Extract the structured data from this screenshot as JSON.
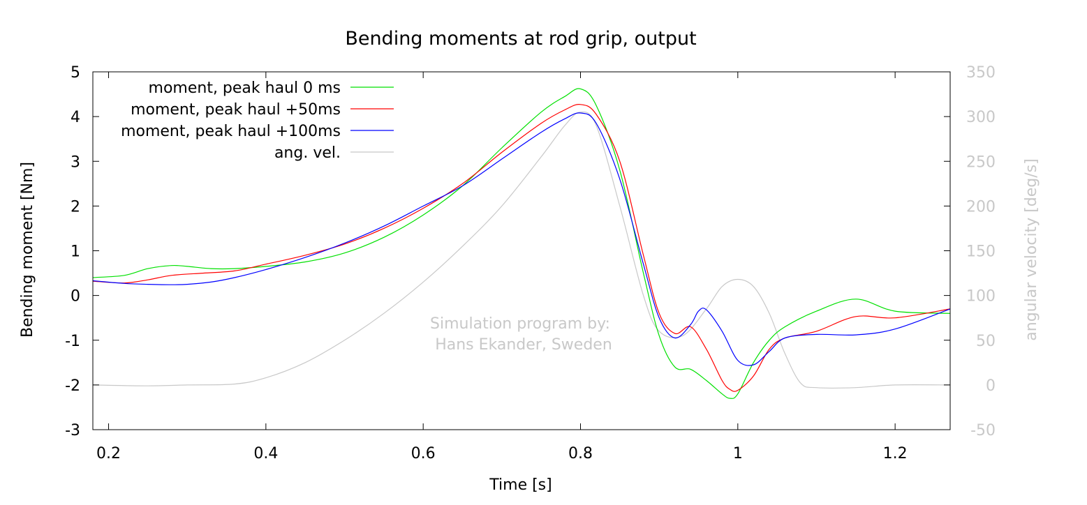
{
  "chart_data": {
    "type": "line",
    "title": "Bending moments at rod grip, output",
    "xlabel": "Time [s]",
    "ylabel": "Bending moment [Nm]",
    "y2label": "angular velocity [deg/s]",
    "xlim": [
      0.18,
      1.27
    ],
    "ylim": [
      -3,
      5
    ],
    "y2lim": [
      -50,
      350
    ],
    "xticks": [
      0.2,
      0.4,
      0.6,
      0.8,
      1,
      1.2
    ],
    "yticks": [
      -3,
      -2,
      -1,
      0,
      1,
      2,
      3,
      4,
      5
    ],
    "y2ticks": [
      -50,
      0,
      50,
      100,
      150,
      200,
      250,
      300,
      350
    ],
    "grid": false,
    "legend_position": "top-left",
    "annotation": [
      "Simulation program by:",
      "Hans Ekander, Sweden"
    ],
    "series": [
      {
        "name": "moment, peak haul 0 ms",
        "color": "#00e000",
        "axis": "y",
        "x": [
          0.18,
          0.22,
          0.25,
          0.28,
          0.3,
          0.33,
          0.36,
          0.4,
          0.45,
          0.5,
          0.55,
          0.6,
          0.65,
          0.7,
          0.75,
          0.78,
          0.8,
          0.82,
          0.85,
          0.88,
          0.9,
          0.92,
          0.94,
          0.96,
          0.98,
          0.99,
          1.0,
          1.02,
          1.04,
          1.06,
          1.1,
          1.15,
          1.2,
          1.27
        ],
        "y": [
          0.4,
          0.45,
          0.6,
          0.67,
          0.65,
          0.6,
          0.6,
          0.65,
          0.75,
          0.95,
          1.3,
          1.8,
          2.45,
          3.3,
          4.1,
          4.45,
          4.62,
          4.25,
          2.8,
          0.5,
          -0.9,
          -1.6,
          -1.65,
          -1.9,
          -2.2,
          -2.3,
          -2.2,
          -1.5,
          -1.0,
          -0.7,
          -0.35,
          -0.08,
          -0.35,
          -0.4
        ]
      },
      {
        "name": "moment, peak haul +50ms",
        "color": "#ff0000",
        "axis": "y",
        "x": [
          0.18,
          0.22,
          0.25,
          0.28,
          0.32,
          0.36,
          0.4,
          0.45,
          0.5,
          0.55,
          0.6,
          0.65,
          0.7,
          0.75,
          0.78,
          0.8,
          0.82,
          0.85,
          0.88,
          0.9,
          0.92,
          0.94,
          0.96,
          0.98,
          0.99,
          1.0,
          1.02,
          1.04,
          1.06,
          1.1,
          1.15,
          1.2,
          1.27
        ],
        "y": [
          0.32,
          0.28,
          0.35,
          0.45,
          0.5,
          0.55,
          0.7,
          0.9,
          1.15,
          1.5,
          1.95,
          2.5,
          3.2,
          3.85,
          4.15,
          4.27,
          4.05,
          3.0,
          0.9,
          -0.4,
          -0.85,
          -0.7,
          -1.2,
          -1.9,
          -2.1,
          -2.12,
          -1.8,
          -1.2,
          -0.95,
          -0.8,
          -0.47,
          -0.5,
          -0.3
        ]
      },
      {
        "name": "moment, peak haul +100ms",
        "color": "#0000ff",
        "axis": "y",
        "x": [
          0.18,
          0.22,
          0.25,
          0.28,
          0.3,
          0.33,
          0.36,
          0.4,
          0.45,
          0.5,
          0.55,
          0.6,
          0.65,
          0.7,
          0.75,
          0.78,
          0.8,
          0.82,
          0.85,
          0.88,
          0.9,
          0.92,
          0.94,
          0.95,
          0.96,
          0.98,
          1.0,
          1.02,
          1.04,
          1.06,
          1.1,
          1.15,
          1.2,
          1.27
        ],
        "y": [
          0.33,
          0.27,
          0.25,
          0.24,
          0.25,
          0.3,
          0.4,
          0.58,
          0.85,
          1.17,
          1.55,
          2.0,
          2.45,
          3.05,
          3.65,
          3.95,
          4.08,
          3.85,
          2.6,
          0.7,
          -0.5,
          -0.95,
          -0.65,
          -0.35,
          -0.32,
          -0.8,
          -1.45,
          -1.55,
          -1.25,
          -0.95,
          -0.87,
          -0.88,
          -0.75,
          -0.3
        ]
      },
      {
        "name": "ang. vel.",
        "color": "#c8c8c8",
        "axis": "y2",
        "x": [
          0.18,
          0.25,
          0.3,
          0.36,
          0.4,
          0.45,
          0.5,
          0.55,
          0.6,
          0.65,
          0.7,
          0.75,
          0.78,
          0.8,
          0.82,
          0.85,
          0.88,
          0.9,
          0.93,
          0.96,
          0.98,
          1.0,
          1.02,
          1.04,
          1.06,
          1.08,
          1.1,
          1.15,
          1.2,
          1.27
        ],
        "y": [
          0,
          -1,
          0,
          1,
          8,
          25,
          50,
          80,
          115,
          155,
          200,
          255,
          290,
          305,
          290,
          200,
          100,
          60,
          55,
          85,
          110,
          118,
          110,
          80,
          35,
          2,
          -3,
          -3,
          0,
          0
        ]
      }
    ]
  }
}
